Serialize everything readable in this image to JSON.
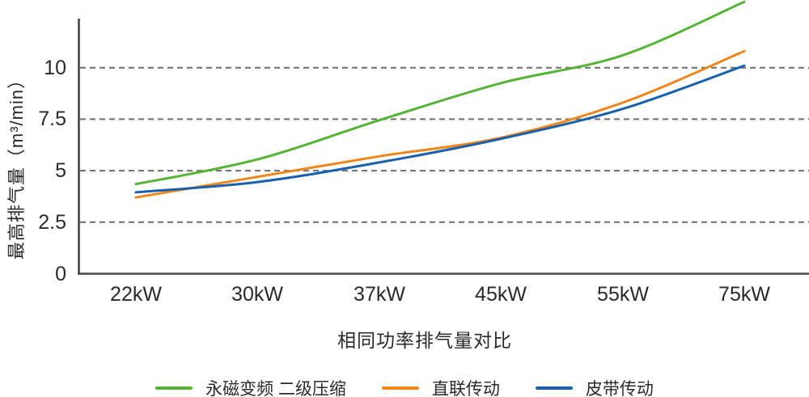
{
  "chart_data": {
    "type": "line",
    "title": "相同功率排气量对比",
    "xlabel": "",
    "ylabel": "最高排气量（m³/min）",
    "categories": [
      "22kW",
      "30kW",
      "37kW",
      "45kW",
      "55kW",
      "75kW"
    ],
    "y_ticks": [
      "0",
      "2.5",
      "5",
      "7.5",
      "10"
    ],
    "y_tick_values": [
      0,
      2.5,
      5,
      7.5,
      10
    ],
    "gridline_values": [
      2.5,
      5,
      7.5,
      10
    ],
    "ylim": [
      0,
      13.3
    ],
    "grid": true,
    "legend_position": "bottom",
    "series": [
      {
        "name": "永磁变频 二级压缩",
        "color": "#55b335",
        "values": [
          4.35,
          5.55,
          7.45,
          9.25,
          10.6,
          13.2
        ]
      },
      {
        "name": "直联传动",
        "color": "#f08519",
        "values": [
          3.7,
          4.7,
          5.7,
          6.6,
          8.3,
          10.8
        ]
      },
      {
        "name": "皮带传动",
        "color": "#1a60ad",
        "values": [
          3.95,
          4.45,
          5.4,
          6.55,
          8.0,
          10.1
        ]
      }
    ]
  },
  "style_colors": {
    "axis": "#464648",
    "gridline": "#6d6e71",
    "text": "#2b2a29"
  }
}
